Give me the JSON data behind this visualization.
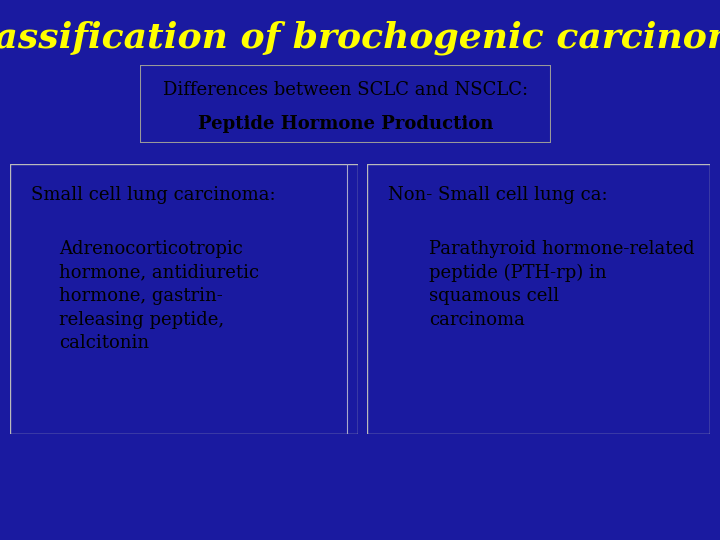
{
  "title": "Classification of brochogenic carcinoma",
  "title_color": "#FFFF00",
  "title_fontsize": 26,
  "background_color": "#1A1AA0",
  "subtitle_box_color": "#C8C8C8",
  "subtitle_line1": "Differences between SCLC and NSCLC:",
  "subtitle_line2": "Peptide Hormone Production",
  "subtitle_fontsize": 13,
  "card_bg_color": "#FFE8D5",
  "card_text_color": "#000000",
  "left_header": "Small cell lung carcinoma:",
  "left_body": "Adrenocorticotropic\nhormone, antidiuretic\nhormone, gastrin-\nreleasing peptide,\ncalcitonin",
  "right_header": "Non- Small cell lung ca:",
  "right_body": "Parathyroid hormone-related\npeptide (PTH-rp) in\nsquamous cell\ncarcinoma",
  "header_fontsize": 13,
  "body_fontsize": 13
}
